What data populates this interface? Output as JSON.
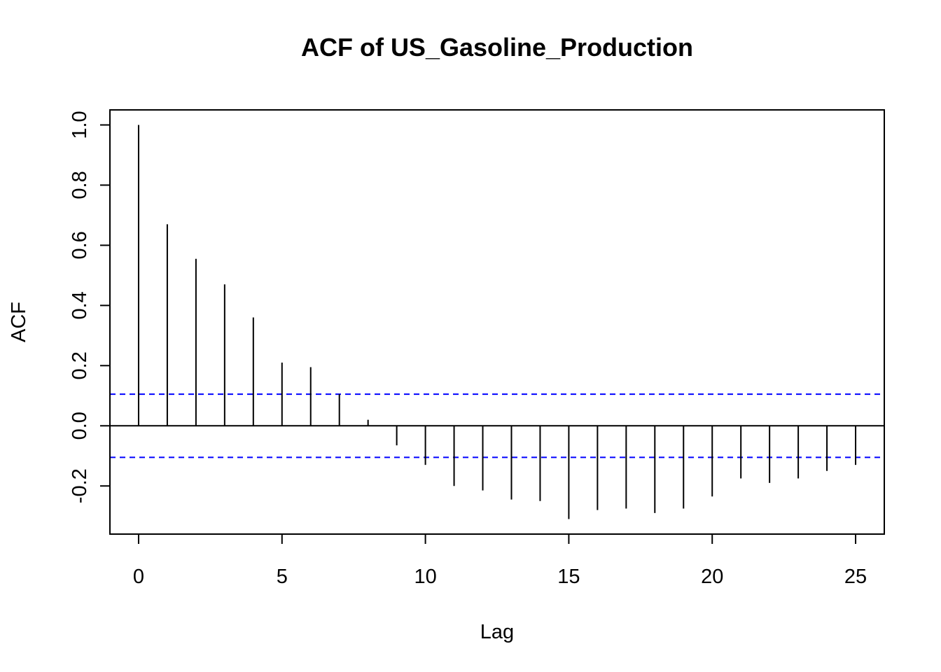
{
  "chart_data": {
    "type": "bar",
    "title": "ACF of US_Gasoline_Production",
    "xlabel": "Lag",
    "ylabel": "ACF",
    "xlim": [
      -1,
      26
    ],
    "ylim": [
      -0.36,
      1.05
    ],
    "xticks": [
      0,
      5,
      10,
      15,
      20,
      25
    ],
    "xtick_labels": [
      "0",
      "5",
      "10",
      "15",
      "20",
      "25"
    ],
    "yticks": [
      -0.2,
      0.0,
      0.2,
      0.4,
      0.6,
      0.8,
      1.0
    ],
    "ytick_labels": [
      "-0.2",
      "0.0",
      "0.2",
      "0.4",
      "0.6",
      "0.8",
      "1.0"
    ],
    "lags": [
      0,
      1,
      2,
      3,
      4,
      5,
      6,
      7,
      8,
      9,
      10,
      11,
      12,
      13,
      14,
      15,
      16,
      17,
      18,
      19,
      20,
      21,
      22,
      23,
      24,
      25
    ],
    "values": [
      1.0,
      0.67,
      0.555,
      0.47,
      0.36,
      0.21,
      0.195,
      0.105,
      0.02,
      -0.065,
      -0.13,
      -0.2,
      -0.215,
      -0.245,
      -0.25,
      -0.31,
      -0.28,
      -0.275,
      -0.29,
      -0.275,
      -0.235,
      -0.175,
      -0.19,
      -0.175,
      -0.15,
      -0.13
    ],
    "confidence_bounds": [
      0.105,
      -0.105
    ],
    "colors": {
      "spikes": "#000000",
      "bounds": "#0000ff",
      "zero_line": "#000000"
    },
    "grid": false,
    "legend": "none"
  }
}
